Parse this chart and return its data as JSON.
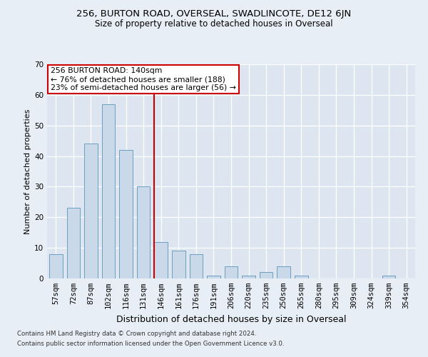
{
  "title1": "256, BURTON ROAD, OVERSEAL, SWADLINCOTE, DE12 6JN",
  "title2": "Size of property relative to detached houses in Overseal",
  "xlabel": "Distribution of detached houses by size in Overseal",
  "ylabel": "Number of detached properties",
  "categories": [
    "57sqm",
    "72sqm",
    "87sqm",
    "102sqm",
    "116sqm",
    "131sqm",
    "146sqm",
    "161sqm",
    "176sqm",
    "191sqm",
    "206sqm",
    "220sqm",
    "235sqm",
    "250sqm",
    "265sqm",
    "280sqm",
    "295sqm",
    "309sqm",
    "324sqm",
    "339sqm",
    "354sqm"
  ],
  "values": [
    8,
    23,
    44,
    57,
    42,
    30,
    12,
    9,
    8,
    1,
    4,
    1,
    2,
    4,
    1,
    0,
    0,
    0,
    0,
    1,
    0
  ],
  "bar_color": "#c9d9ea",
  "bar_edge_color": "#6a9fc0",
  "vline_color": "#cc0000",
  "annotation_line1": "256 BURTON ROAD: 140sqm",
  "annotation_line2": "← 76% of detached houses are smaller (188)",
  "annotation_line3": "23% of semi-detached houses are larger (56) →",
  "annotation_box_edgecolor": "#cc0000",
  "ylim": [
    0,
    70
  ],
  "yticks": [
    0,
    10,
    20,
    30,
    40,
    50,
    60,
    70
  ],
  "footnote1": "Contains HM Land Registry data © Crown copyright and database right 2024.",
  "footnote2": "Contains public sector information licensed under the Open Government Licence v3.0.",
  "plot_bg_color": "#dde6f0",
  "fig_bg_color": "#e8eef5",
  "bar_width": 0.75,
  "title1_fontsize": 9.5,
  "title2_fontsize": 8.5,
  "xlabel_fontsize": 9,
  "ylabel_fontsize": 8,
  "tick_fontsize": 7.5,
  "footnote_fontsize": 6.2,
  "annot_fontsize": 7.8
}
